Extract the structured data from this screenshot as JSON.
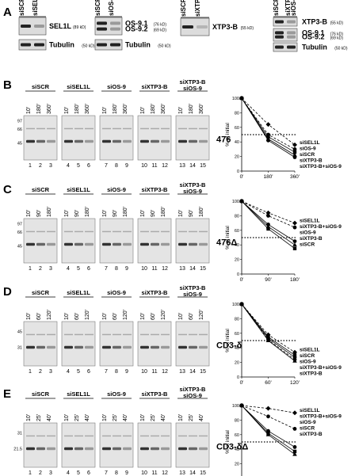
{
  "panel_letters": [
    "A",
    "B",
    "C",
    "D",
    "E"
  ],
  "panel_a": {
    "groups": [
      {
        "lanes": [
          "siSCR",
          "siSEL1L"
        ],
        "blots": [
          {
            "labels": [
              {
                "name": "SEL1L",
                "kd": "(89 kD)"
              }
            ]
          },
          {
            "labels": [
              {
                "name": "Tubulin",
                "kd": "(50 kD)"
              }
            ]
          }
        ]
      },
      {
        "lanes": [
          "siSCR",
          "siOS-9"
        ],
        "blots": [
          {
            "labels": [
              {
                "name": "OS-9.1",
                "kd": "(76 kD)"
              },
              {
                "name": "OS-9.2",
                "kd": "(69 kD)"
              }
            ]
          },
          {
            "labels": [
              {
                "name": "Tubulin",
                "kd": "(50 kD)"
              }
            ]
          }
        ]
      },
      {
        "lanes": [
          "siSCR",
          "siXTP3-B"
        ],
        "blots": [
          {
            "labels": [
              {
                "name": "XTP3-B",
                "kd": "(55 kD)"
              }
            ]
          }
        ]
      },
      {
        "lanes": [
          "siSCR",
          "siXTP3-B\nsiOS-9"
        ],
        "blots": [
          {
            "labels": [
              {
                "name": "XTP3-B",
                "kd": "(55 kD)"
              }
            ]
          },
          {
            "labels": [
              {
                "name": "OS-9.1",
                "kd": "(76 kD)"
              },
              {
                "name": "OS-9.2",
                "kd": "(69 kD)"
              }
            ]
          },
          {
            "labels": [
              {
                "name": "Tubulin",
                "kd": "(50 kD)"
              }
            ]
          }
        ]
      }
    ]
  },
  "gel_panels": [
    {
      "letter": "B",
      "label": "476",
      "groups": [
        "siSCR",
        "siSEL1L",
        "siOS-9",
        "siXTP3-B",
        "siXTP3-B\nsiOS-9"
      ],
      "times": [
        "10'",
        "180'",
        "360'"
      ],
      "markers": [
        "97",
        "66",
        "45"
      ],
      "lanes": [
        "1",
        "2",
        "3",
        "4",
        "5",
        "6",
        "7",
        "8",
        "9",
        "10",
        "11",
        "12",
        "13",
        "14",
        "15"
      ],
      "chart": {
        "ylabel": "% of initial",
        "x": [
          "0'",
          "180'",
          "360'"
        ],
        "yticks": [
          "0",
          "20",
          "40",
          "60",
          "80",
          "100"
        ],
        "ylim": [
          0,
          100
        ],
        "series": [
          {
            "name": "siSEL1L",
            "values": [
              100,
              64,
              36
            ],
            "marker": "diamond",
            "dash": true
          },
          {
            "name": "siOS-9",
            "values": [
              100,
              50,
              30
            ],
            "marker": "circle",
            "dash": true
          },
          {
            "name": "siSCR",
            "values": [
              100,
              47,
              26
            ],
            "marker": "square",
            "dash": false
          },
          {
            "name": "siXTP3-B",
            "values": [
              100,
              44,
              22
            ],
            "marker": "triangle",
            "dash": false
          },
          {
            "name": "siXTP3-B+siOS-9",
            "values": [
              100,
              42,
              19
            ],
            "marker": "circle",
            "dash": false
          }
        ],
        "legend": [
          "siSEL1L",
          "siOS-9",
          "siSCR",
          "siXTP3-B",
          "siXTP3-B+siOS-9"
        ]
      }
    },
    {
      "letter": "C",
      "label": "476Δ",
      "groups": [
        "siSCR",
        "siSEL1L",
        "siOS-9",
        "siXTP3-B",
        "siXTP3-B\nsiOS-9"
      ],
      "times": [
        "10'",
        "90'",
        "180'"
      ],
      "markers": [
        "97",
        "66",
        "45"
      ],
      "lanes": [
        "1",
        "2",
        "3",
        "4",
        "5",
        "6",
        "7",
        "8",
        "9",
        "10",
        "11",
        "12",
        "13",
        "14",
        "15"
      ],
      "chart": {
        "ylabel": "% of initial",
        "x": [
          "0'",
          "90'",
          "180'"
        ],
        "yticks": [
          "0",
          "20",
          "40",
          "60",
          "80",
          "100"
        ],
        "ylim": [
          0,
          100
        ],
        "series": [
          {
            "name": "siSEL1L",
            "values": [
              100,
              84,
              70
            ],
            "marker": "diamond",
            "dash": true
          },
          {
            "name": "siXTP3-B+siOS-9",
            "values": [
              100,
              80,
              64
            ],
            "marker": "circle",
            "dash": true
          },
          {
            "name": "siOS-9",
            "values": [
              100,
              68,
              45
            ],
            "marker": "circle",
            "dash": false
          },
          {
            "name": "siXTP3-B",
            "values": [
              100,
              65,
              40
            ],
            "marker": "triangle",
            "dash": false
          },
          {
            "name": "siSCR",
            "values": [
              100,
              62,
              35
            ],
            "marker": "square",
            "dash": false
          }
        ],
        "legend": [
          "siSEL1L",
          "siXTP3-B+siOS-9",
          "siOS-9",
          "siXTP3-B",
          "siSCR"
        ]
      }
    },
    {
      "letter": "D",
      "label": "CD3-δ",
      "groups": [
        "siSCR",
        "siSEL1L",
        "siOS-9",
        "siXTP3-B",
        "siXTP3-B\nsiOS-9"
      ],
      "times": [
        "10'",
        "60'",
        "120'"
      ],
      "markers": [
        "45",
        "31"
      ],
      "lanes": [
        "1",
        "2",
        "3",
        "4",
        "5",
        "6",
        "7",
        "8",
        "9",
        "10",
        "11",
        "12",
        "13",
        "14",
        "15"
      ],
      "chart": {
        "ylabel": "% of initial",
        "x": [
          "0'",
          "60'",
          "120'"
        ],
        "yticks": [
          "0",
          "20",
          "40",
          "60",
          "80",
          "100"
        ],
        "ylim": [
          0,
          100
        ],
        "series": [
          {
            "name": "siSEL1L",
            "values": [
              100,
              58,
              34
            ],
            "marker": "diamond",
            "dash": true
          },
          {
            "name": "siSCR",
            "values": [
              100,
              55,
              30
            ],
            "marker": "square",
            "dash": false
          },
          {
            "name": "siOS-9",
            "values": [
              100,
              53,
              27
            ],
            "marker": "circle",
            "dash": false
          },
          {
            "name": "siXTP3-B+siOS-9",
            "values": [
              100,
              51,
              24
            ],
            "marker": "circle",
            "dash": true
          },
          {
            "name": "siXTP3-B",
            "values": [
              100,
              50,
              22
            ],
            "marker": "triangle",
            "dash": false
          }
        ],
        "legend": [
          "siSEL1L",
          "siSCR",
          "siOS-9",
          "siXTP3-B+siOS-9",
          "siXTP3-B"
        ]
      }
    },
    {
      "letter": "E",
      "label": "CD3-δΔ",
      "groups": [
        "siSCR",
        "siSEL1L",
        "siOS-9",
        "siXTP3-B",
        "siXTP3-B\nsiOS-9"
      ],
      "times": [
        "10'",
        "25'",
        "40'"
      ],
      "markers": [
        "31",
        "21.5"
      ],
      "lanes": [
        "1",
        "2",
        "3",
        "4",
        "5",
        "6",
        "7",
        "8",
        "9",
        "10",
        "11",
        "12",
        "13",
        "14",
        "15"
      ],
      "chart": {
        "ylabel": "% of initial",
        "x": [
          "0'",
          "25'",
          "40'"
        ],
        "yticks": [
          "0",
          "20",
          "40",
          "60",
          "80",
          "100"
        ],
        "ylim": [
          0,
          100
        ],
        "series": [
          {
            "name": "siSEL1L",
            "values": [
              100,
              96,
              90
            ],
            "marker": "diamond",
            "dash": true
          },
          {
            "name": "siXTP3-B+siOS-9",
            "values": [
              100,
              85,
              68
            ],
            "marker": "circle",
            "dash": true
          },
          {
            "name": "siOS-9",
            "values": [
              100,
              65,
              43
            ],
            "marker": "circle",
            "dash": false
          },
          {
            "name": "siSCR",
            "values": [
              100,
              62,
              37
            ],
            "marker": "square",
            "dash": false
          },
          {
            "name": "siXTP3-B",
            "values": [
              100,
              60,
              33
            ],
            "marker": "triangle",
            "dash": false
          }
        ],
        "legend": [
          "siSEL1L",
          "siXTP3-B+siOS-9",
          "siOS-9",
          "siSCR",
          "siXTP3-B"
        ]
      }
    }
  ],
  "chart_data": [
    {
      "type": "line",
      "title": "476",
      "ylabel": "% of initial",
      "x": [
        "0'",
        "180'",
        "360'"
      ],
      "ylim": [
        0,
        100
      ],
      "series": [
        {
          "name": "siSEL1L",
          "values": [
            100,
            64,
            36
          ]
        },
        {
          "name": "siOS-9",
          "values": [
            100,
            50,
            30
          ]
        },
        {
          "name": "siSCR",
          "values": [
            100,
            47,
            26
          ]
        },
        {
          "name": "siXTP3-B",
          "values": [
            100,
            44,
            22
          ]
        },
        {
          "name": "siXTP3-B+siOS-9",
          "values": [
            100,
            42,
            19
          ]
        }
      ]
    },
    {
      "type": "line",
      "title": "476Δ",
      "ylabel": "% of initial",
      "x": [
        "0'",
        "90'",
        "180'"
      ],
      "ylim": [
        0,
        100
      ],
      "series": [
        {
          "name": "siSEL1L",
          "values": [
            100,
            84,
            70
          ]
        },
        {
          "name": "siXTP3-B+siOS-9",
          "values": [
            100,
            80,
            64
          ]
        },
        {
          "name": "siOS-9",
          "values": [
            100,
            68,
            45
          ]
        },
        {
          "name": "siXTP3-B",
          "values": [
            100,
            65,
            40
          ]
        },
        {
          "name": "siSCR",
          "values": [
            100,
            62,
            35
          ]
        }
      ]
    },
    {
      "type": "line",
      "title": "CD3-δ",
      "ylabel": "% of initial",
      "x": [
        "0'",
        "60'",
        "120'"
      ],
      "ylim": [
        0,
        100
      ],
      "series": [
        {
          "name": "siSEL1L",
          "values": [
            100,
            58,
            34
          ]
        },
        {
          "name": "siSCR",
          "values": [
            100,
            55,
            30
          ]
        },
        {
          "name": "siOS-9",
          "values": [
            100,
            53,
            27
          ]
        },
        {
          "name": "siXTP3-B+siOS-9",
          "values": [
            100,
            51,
            24
          ]
        },
        {
          "name": "siXTP3-B",
          "values": [
            100,
            50,
            22
          ]
        }
      ]
    },
    {
      "type": "line",
      "title": "CD3-δΔ",
      "ylabel": "% of initial",
      "x": [
        "0'",
        "25'",
        "40'"
      ],
      "ylim": [
        0,
        100
      ],
      "series": [
        {
          "name": "siSEL1L",
          "values": [
            100,
            96,
            90
          ]
        },
        {
          "name": "siXTP3-B+siOS-9",
          "values": [
            100,
            85,
            68
          ]
        },
        {
          "name": "siOS-9",
          "values": [
            100,
            65,
            43
          ]
        },
        {
          "name": "siSCR",
          "values": [
            100,
            62,
            37
          ]
        },
        {
          "name": "siXTP3-B",
          "values": [
            100,
            60,
            33
          ]
        }
      ]
    }
  ]
}
